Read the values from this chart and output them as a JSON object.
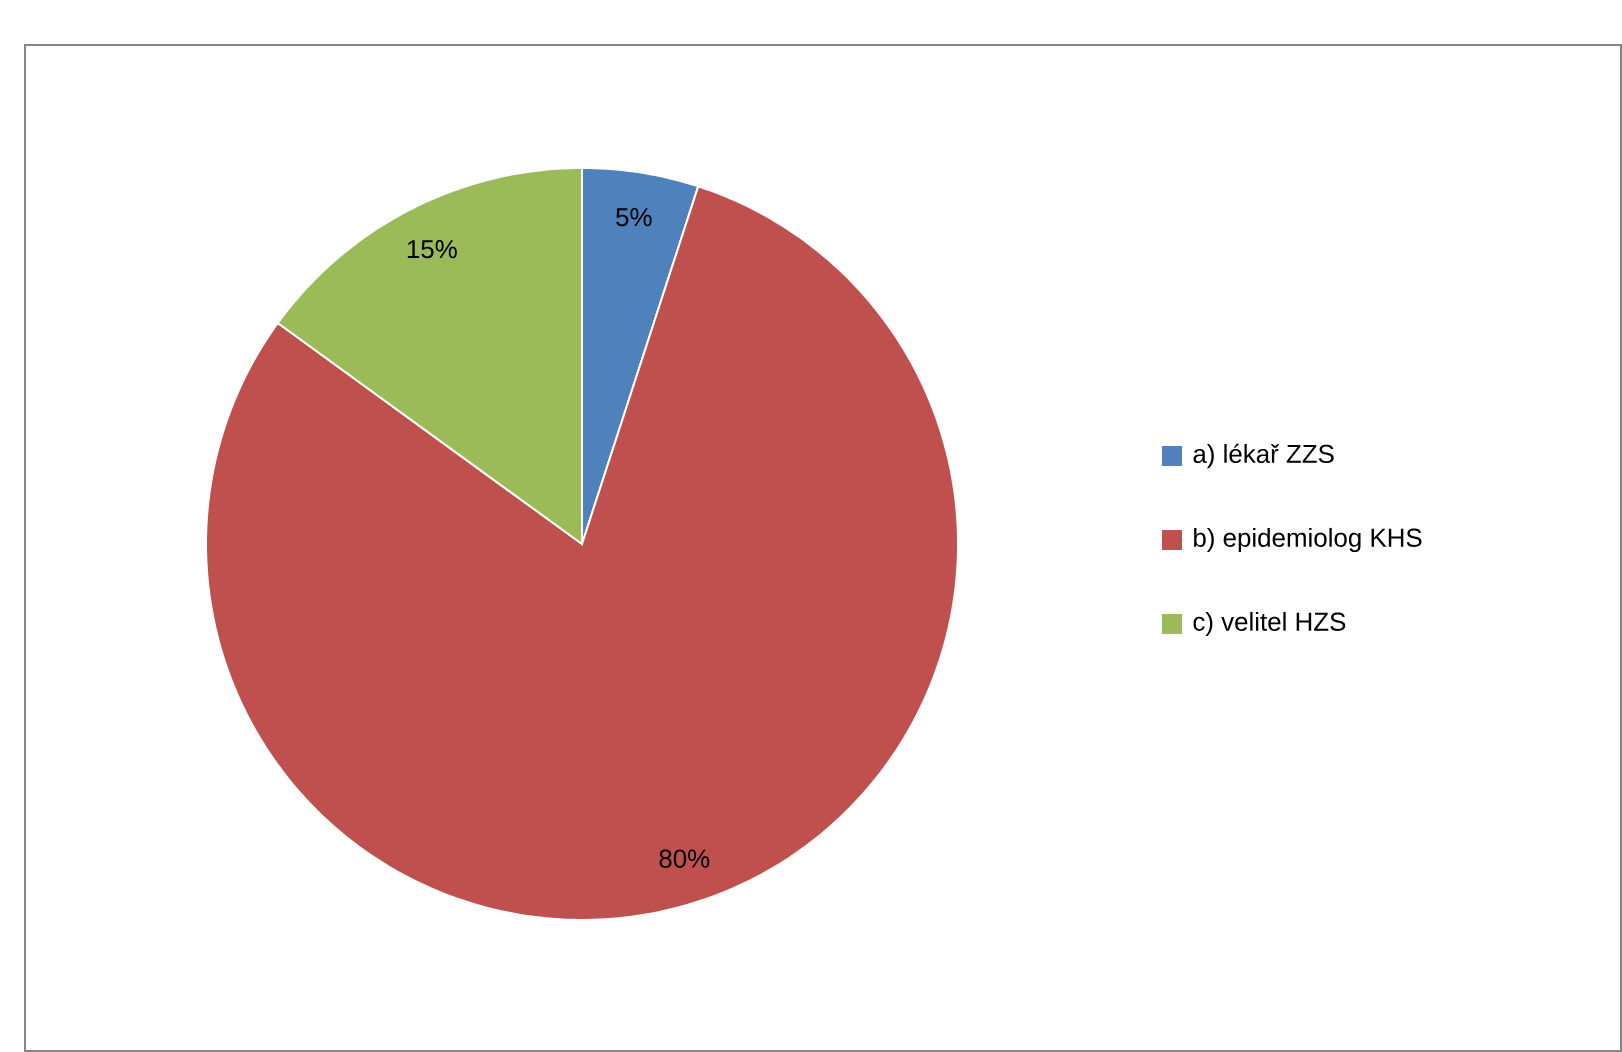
{
  "chart_data": {
    "type": "pie",
    "categories": [
      "a) lékař ZZS",
      "b) epidemiolog KHS",
      "c) velitel HZS"
    ],
    "values": [
      5,
      80,
      15
    ],
    "colors": [
      "#4f81bd",
      "#c0504d",
      "#9bbb59"
    ],
    "value_labels": [
      "5%",
      "80%",
      "15%"
    ],
    "legend": "right"
  }
}
